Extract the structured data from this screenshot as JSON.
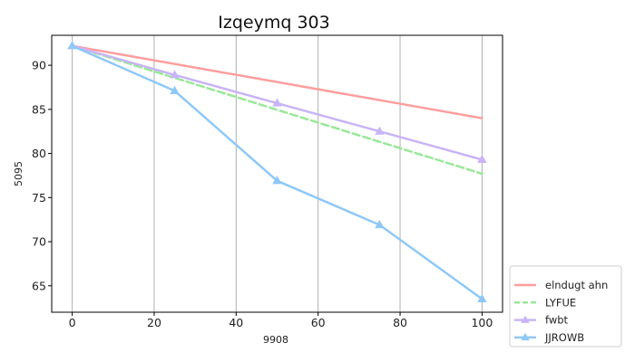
{
  "chart_data": {
    "type": "line",
    "title": "Izqeymq 303",
    "xlabel": "9908",
    "ylabel": "5095",
    "xlim": [
      -5,
      105
    ],
    "ylim": [
      62,
      93.4
    ],
    "xticks": [
      0,
      20,
      40,
      60,
      80,
      100
    ],
    "yticks": [
      65,
      70,
      75,
      80,
      85,
      90
    ],
    "grid": "vertical",
    "legend_position": "bottom-right",
    "series": [
      {
        "name": "elndugt ahn",
        "color": "#ff9e9e",
        "dash": "solid",
        "marker": "none",
        "line_width": 2.5,
        "x": [
          0,
          100
        ],
        "y": [
          92.2,
          84
        ]
      },
      {
        "name": "LYFUE",
        "color": "#98e898",
        "dash": "dashed",
        "marker": "none",
        "line_width": 2.5,
        "x": [
          0,
          100
        ],
        "y": [
          92.2,
          77.7
        ]
      },
      {
        "name": "fwbt",
        "color": "#c8b4f6",
        "dash": "solid",
        "marker": "triangle",
        "line_width": 2.5,
        "x": [
          0,
          25,
          50,
          75,
          100
        ],
        "y": [
          92.2,
          88.9,
          85.7,
          82.5,
          79.3
        ]
      },
      {
        "name": "JJROWB",
        "color": "#8ec8f8",
        "dash": "solid",
        "marker": "triangle",
        "line_width": 2.5,
        "x": [
          0,
          25,
          50,
          75,
          100
        ],
        "y": [
          92.2,
          87.1,
          76.9,
          71.9,
          63.5
        ]
      }
    ]
  }
}
